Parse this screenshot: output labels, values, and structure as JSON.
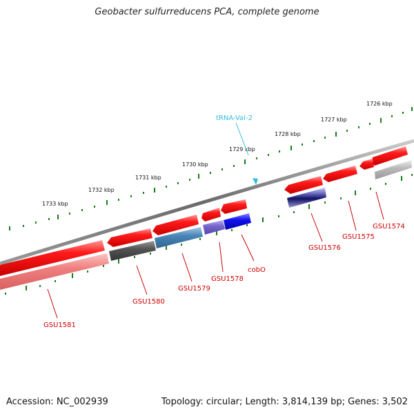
{
  "title": "Geobacter sulfurreducens PCA, complete genome",
  "footer": {
    "accession": "Accession: NC_002939",
    "summary": "Topology: circular; Length: 3,814,139 bp; Genes: 3,502"
  },
  "scale_labels": [
    "1726 kbp",
    "1727 kbp",
    "1728 kbp",
    "1729 kbp",
    "1730 kbp",
    "1731 kbp",
    "1732 kbp",
    "1733 kbp"
  ],
  "gene_labels": [
    "GSU1574",
    "GSU1575",
    "GSU1576",
    "cobO",
    "GSU1578",
    "GSU1579",
    "GSU1580",
    "GSU1581"
  ],
  "trna_label": "tRNA-Val-2",
  "colors": {
    "gene_red": "#ee1111",
    "gene_pink": "#f08080",
    "gene_dark_gray": "#555555",
    "gene_steel_blue": "#4a86b8",
    "gene_purple": "#7766cc",
    "gene_blue": "#1111ee",
    "gene_navy": "#222288",
    "gene_light_gray": "#bbbbbb",
    "backbone": "#777777",
    "ticks": "#1a7a1a",
    "trna": "#33bbdd"
  }
}
